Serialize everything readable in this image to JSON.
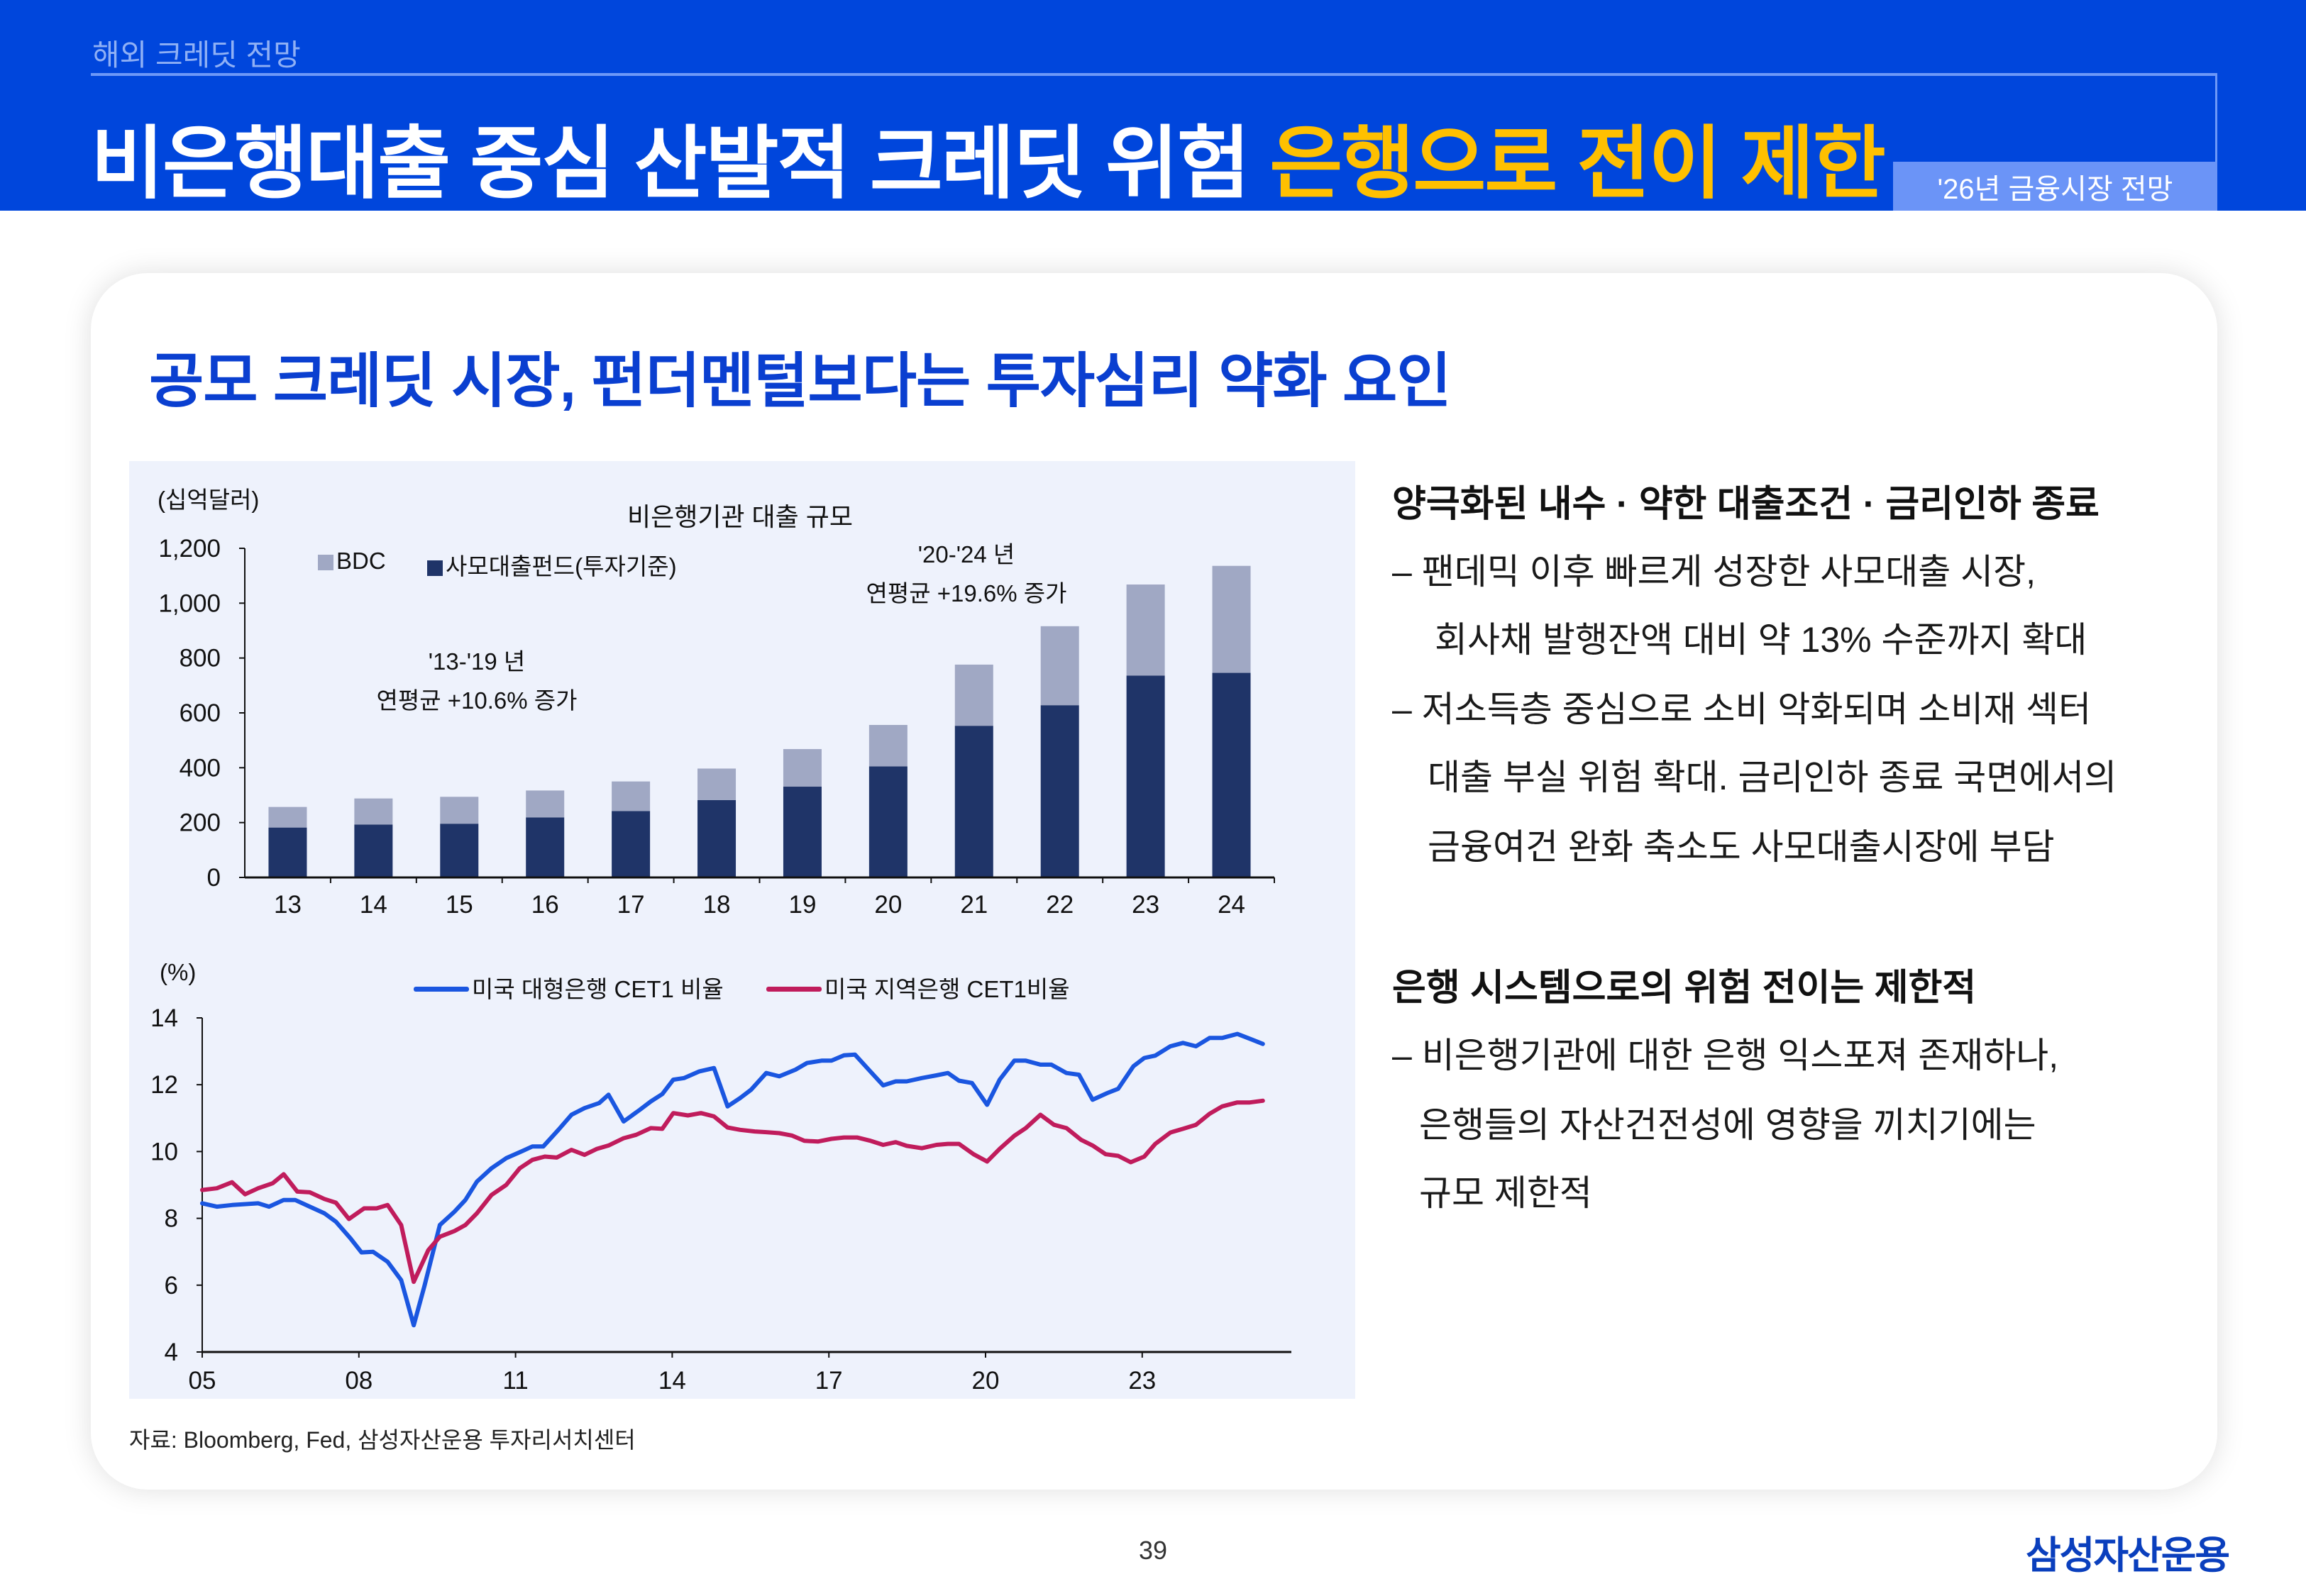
{
  "header": {
    "section_label": "해외 크레딧 전망",
    "title_main": "비은행대출 중심 산발적 크레딧 위험 ",
    "title_highlight": "은행으로 전이 제한",
    "tag": "'26년 금융시장 전망"
  },
  "card": {
    "heading": "공모 크레딧 시장, 펀더멘털보다는 투자심리 약화 요인",
    "source": "자료: Bloomberg, Fed, 삼성자산운용 투자리서치센터"
  },
  "right_text": {
    "heading1": "양극화된 내수 · 약한 대출조건 · 금리인하 종료",
    "lines1": [
      "– 팬데믹 이후 빠르게 성장한 사모대출 시장,",
      "회사채 발행잔액 대비 약 13% 수준까지 확대",
      "– 저소득층 중심으로 소비 악화되며 소비재 섹터",
      "대출 부실 위험 확대. 금리인하 종료 국면에서의",
      "금융여건 완화 축소도 사모대출시장에 부담"
    ],
    "heading2": "은행 시스템으로의 위험 전이는 제한적",
    "lines2": [
      "– 비은행기관에 대한 은행 익스포져 존재하나,",
      "은행들의 자산건전성에 영향을 끼치기에는",
      "규모 제한적"
    ]
  },
  "footer": {
    "page_number": "39",
    "logo": "삼성자산운용"
  },
  "colors": {
    "header_blue": "#0046dc",
    "highlight_yellow": "#ffc000",
    "bar_dark": "#1f3468",
    "bar_light": "#a0a8c4",
    "line_blue": "#1a56e0",
    "line_pink": "#c01c5c"
  },
  "chart_data": [
    {
      "type": "bar",
      "stacked": true,
      "title": "비은행기관 대출 규모",
      "unit_label": "(십억달러)",
      "categories": [
        "13",
        "14",
        "15",
        "16",
        "17",
        "18",
        "19",
        "20",
        "21",
        "22",
        "23",
        "24"
      ],
      "series": [
        {
          "name": "사모대출펀드(투자기준)",
          "color": "#1f3468",
          "values": [
            182,
            193,
            196,
            219,
            242,
            282,
            331,
            405,
            553,
            628,
            736,
            746
          ]
        },
        {
          "name": "BDC",
          "color": "#a0a8c4",
          "values": [
            75,
            95,
            98,
            98,
            108,
            115,
            137,
            151,
            223,
            288,
            332,
            390
          ]
        }
      ],
      "ylim": [
        0,
        1200
      ],
      "yticks": [
        0,
        200,
        400,
        600,
        800,
        1000,
        1200
      ],
      "ytick_labels": [
        "0",
        "200",
        "400",
        "600",
        "800",
        "1,000",
        "1,200"
      ],
      "legend_order": [
        "BDC",
        "사모대출펀드(투자기준)"
      ],
      "legend_position": "top-left",
      "annotations": [
        {
          "line1": "'13-'19 년",
          "line2": "연평균 +10.6% 증가"
        },
        {
          "line1": "'20-'24 년",
          "line2": "연평균 +19.6% 증가"
        }
      ],
      "grid": false
    },
    {
      "type": "line",
      "unit_label": "(%)",
      "xlim": [
        2005,
        2025.8
      ],
      "xticks": [
        2005,
        2008,
        2011,
        2014,
        2017,
        2020,
        2023
      ],
      "xtick_labels": [
        "05",
        "08",
        "11",
        "14",
        "17",
        "20",
        "23"
      ],
      "ylim": [
        4,
        14
      ],
      "yticks": [
        4,
        6,
        8,
        10,
        12,
        14
      ],
      "ytick_labels": [
        "4",
        "6",
        "8",
        "10",
        "12",
        "14"
      ],
      "legend_position": "top",
      "grid": false,
      "series": [
        {
          "name": "미국 대형은행 CET1 비율",
          "color": "#1a56e0",
          "x": [
            2005.0,
            2005.28,
            2005.57,
            2006.07,
            2006.28,
            2006.56,
            2006.78,
            2007.06,
            2007.34,
            2007.56,
            2007.84,
            2008.05,
            2008.27,
            2008.55,
            2008.81,
            2009.05,
            2009.26,
            2009.55,
            2009.83,
            2010.04,
            2010.26,
            2010.54,
            2010.82,
            2011.11,
            2011.32,
            2011.53,
            2011.82,
            2012.07,
            2012.32,
            2012.6,
            2012.78,
            2013.07,
            2013.38,
            2013.59,
            2013.81,
            2014.02,
            2014.23,
            2014.52,
            2014.8,
            2015.06,
            2015.3,
            2015.51,
            2015.8,
            2016.05,
            2016.36,
            2016.58,
            2016.86,
            2017.05,
            2017.29,
            2017.5,
            2017.78,
            2018.04,
            2018.28,
            2018.49,
            2018.78,
            2019.06,
            2019.28,
            2019.49,
            2019.74,
            2020.03,
            2020.27,
            2020.55,
            2020.77,
            2021.05,
            2021.26,
            2021.55,
            2021.79,
            2022.05,
            2022.33,
            2022.54,
            2022.83,
            2023.04,
            2023.25,
            2023.54,
            2023.78,
            2024.03,
            2024.29,
            2024.53,
            2024.82,
            2025.1,
            2025.31
          ],
          "y": [
            8.45,
            8.35,
            8.4,
            8.45,
            8.35,
            8.55,
            8.55,
            8.35,
            8.15,
            7.9,
            7.4,
            6.98,
            7.0,
            6.7,
            6.15,
            4.8,
            6.0,
            7.8,
            8.2,
            8.55,
            9.1,
            9.5,
            9.8,
            10.0,
            10.15,
            10.15,
            10.65,
            11.1,
            11.3,
            11.45,
            11.7,
            10.9,
            11.25,
            11.5,
            11.72,
            12.15,
            12.2,
            12.4,
            12.5,
            11.35,
            11.6,
            11.85,
            12.35,
            12.25,
            12.45,
            12.65,
            12.72,
            12.72,
            12.88,
            12.9,
            12.42,
            11.98,
            12.1,
            12.1,
            12.2,
            12.28,
            12.35,
            12.12,
            12.05,
            11.4,
            12.15,
            12.72,
            12.72,
            12.6,
            12.6,
            12.35,
            12.3,
            11.55,
            11.75,
            11.88,
            12.55,
            12.8,
            12.87,
            13.15,
            13.25,
            13.15,
            13.4,
            13.4,
            13.52,
            13.35,
            13.22
          ]
        },
        {
          "name": "미국 지역은행 CET1비율",
          "color": "#c01c5c",
          "x": [
            2005.0,
            2005.28,
            2005.57,
            2005.82,
            2006.07,
            2006.35,
            2006.56,
            2006.82,
            2007.06,
            2007.34,
            2007.56,
            2007.81,
            2008.1,
            2008.34,
            2008.55,
            2008.81,
            2009.05,
            2009.33,
            2009.55,
            2009.83,
            2010.04,
            2010.26,
            2010.54,
            2010.82,
            2011.08,
            2011.32,
            2011.56,
            2011.79,
            2012.07,
            2012.32,
            2012.56,
            2012.78,
            2013.07,
            2013.31,
            2013.59,
            2013.81,
            2014.02,
            2014.3,
            2014.55,
            2014.8,
            2015.06,
            2015.3,
            2015.58,
            2015.8,
            2016.05,
            2016.29,
            2016.53,
            2016.79,
            2017.05,
            2017.29,
            2017.54,
            2017.78,
            2018.04,
            2018.28,
            2018.49,
            2018.78,
            2019.06,
            2019.28,
            2019.49,
            2019.77,
            2020.03,
            2020.27,
            2020.55,
            2020.77,
            2021.05,
            2021.31,
            2021.55,
            2021.83,
            2022.05,
            2022.3,
            2022.54,
            2022.78,
            2023.04,
            2023.25,
            2023.54,
            2023.78,
            2024.03,
            2024.29,
            2024.53,
            2024.82,
            2025.06,
            2025.31
          ],
          "y": [
            8.85,
            8.9,
            9.08,
            8.72,
            8.9,
            9.05,
            9.32,
            8.8,
            8.78,
            8.58,
            8.47,
            7.98,
            8.3,
            8.3,
            8.4,
            7.8,
            6.1,
            7.05,
            7.45,
            7.62,
            7.8,
            8.15,
            8.7,
            9.0,
            9.5,
            9.75,
            9.85,
            9.82,
            10.05,
            9.9,
            10.08,
            10.18,
            10.4,
            10.5,
            10.7,
            10.68,
            11.15,
            11.08,
            11.15,
            11.05,
            10.72,
            10.65,
            10.6,
            10.58,
            10.55,
            10.48,
            10.32,
            10.3,
            10.38,
            10.42,
            10.42,
            10.33,
            10.2,
            10.28,
            10.17,
            10.1,
            10.2,
            10.23,
            10.23,
            9.92,
            9.7,
            10.08,
            10.47,
            10.7,
            11.1,
            10.8,
            10.7,
            10.35,
            10.18,
            9.92,
            9.87,
            9.68,
            9.85,
            10.23,
            10.57,
            10.68,
            10.8,
            11.13,
            11.35,
            11.47,
            11.47,
            11.52
          ]
        }
      ]
    }
  ]
}
